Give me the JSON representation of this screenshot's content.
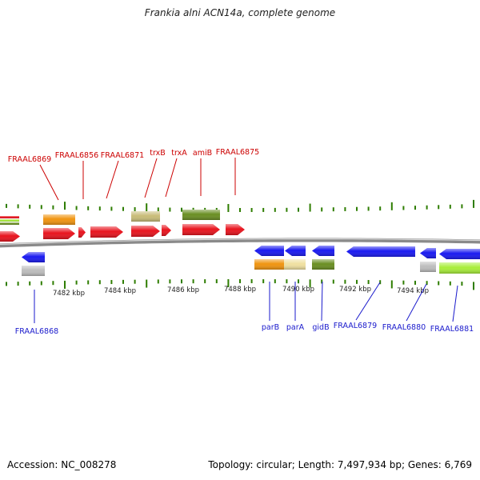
{
  "title": "Frankia alni ACN14a, complete genome",
  "footer": {
    "accession": "Accession: NC_008278",
    "summary": "Topology: circular; Length: 7,497,934 bp; Genes: 6,769"
  },
  "colors": {
    "forward_label": "#cc0000",
    "reverse_label": "#1a1acc",
    "tick": "#2e7d00",
    "backbone": "#8a8a8a",
    "red": "#e8141e",
    "blue": "#1a1af0",
    "orange": "#f09410",
    "khaki": "#c8bc78",
    "olive": "#6a8e22",
    "gray": "#bdbdbd",
    "yellow": "#f0e0a0",
    "lime": "#a8ee3a"
  },
  "kbp_labels": [
    "7482 kbp",
    "7484 kbp",
    "7486 kbp",
    "7488 kbp",
    "7490 kbp",
    "7492 kbp",
    "7494 kbp"
  ],
  "top_labels": [
    {
      "text": "FRAAL6869"
    },
    {
      "text": "FRAAL6856"
    },
    {
      "text": "FRAAL6871"
    },
    {
      "text": "trxB"
    },
    {
      "text": "trxA"
    },
    {
      "text": "amiB"
    },
    {
      "text": "FRAAL6875"
    }
  ],
  "bottom_labels": [
    {
      "text": "FRAAL6868"
    },
    {
      "text": "parB"
    },
    {
      "text": "parA"
    },
    {
      "text": "gidB"
    },
    {
      "text": "FRAAL6879"
    },
    {
      "text": "FRAAL6880"
    },
    {
      "text": "FRAAL6881"
    }
  ]
}
